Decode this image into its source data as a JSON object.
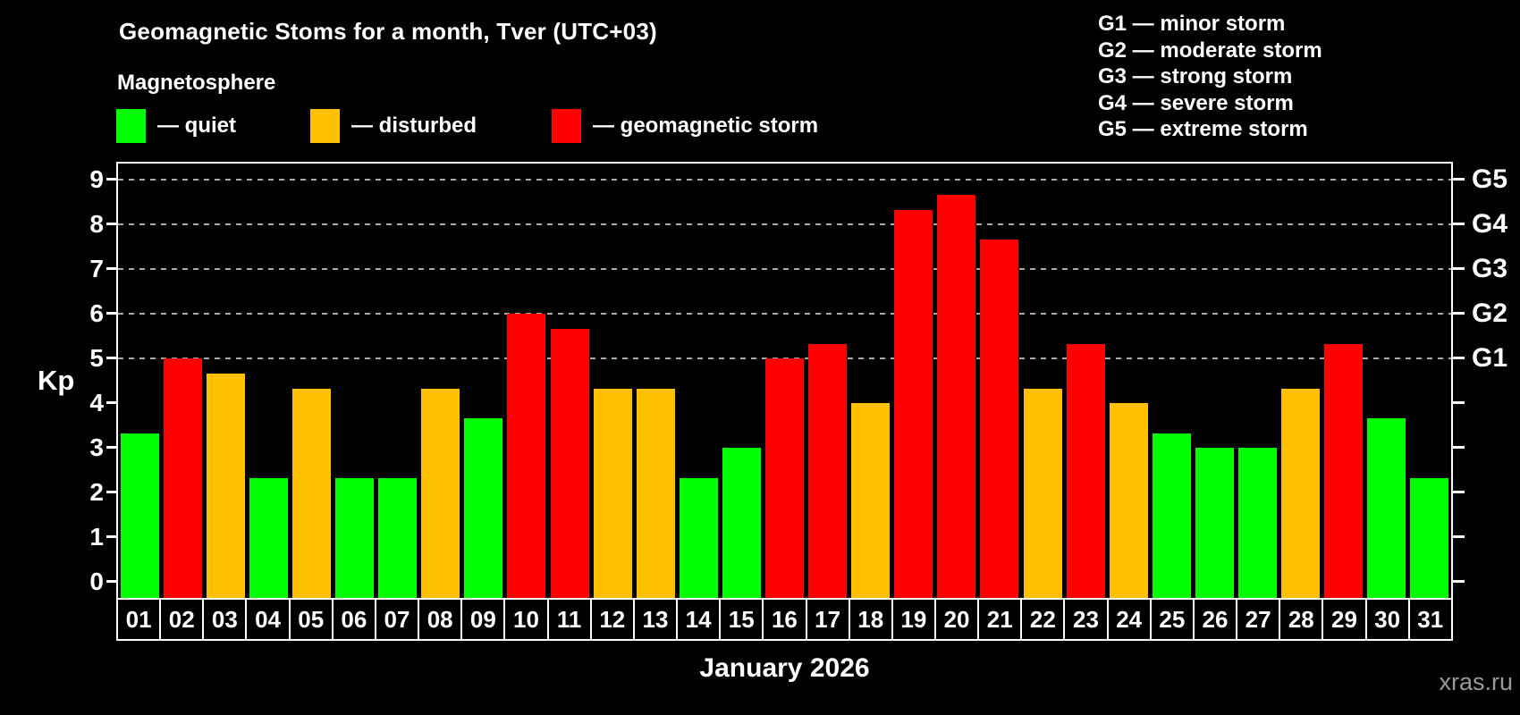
{
  "header": {
    "title": "Geomagnetic Stoms for a month, Tver (UTC+03)",
    "subtitle": "Magnetosphere"
  },
  "legend": {
    "items": [
      {
        "name": "quiet",
        "label": "— quiet",
        "color": "#00FF00"
      },
      {
        "name": "disturbed",
        "label": "— disturbed",
        "color": "#FFC000"
      },
      {
        "name": "storm",
        "label": "— geomagnetic storm",
        "color": "#FF0000"
      }
    ]
  },
  "g_scale_legend": {
    "lines": [
      "G1 — minor storm",
      "G2 — moderate storm",
      "G3 — strong storm",
      "G4 — severe storm",
      "G5 — extreme storm"
    ]
  },
  "chart_data": {
    "type": "bar",
    "title": "Geomagnetic Stoms for a month, Tver (UTC+03)",
    "xlabel": "January 2026",
    "ylabel": "Kp",
    "categories": [
      "01",
      "02",
      "03",
      "04",
      "05",
      "06",
      "07",
      "08",
      "09",
      "10",
      "11",
      "12",
      "13",
      "14",
      "15",
      "16",
      "17",
      "18",
      "19",
      "20",
      "21",
      "22",
      "23",
      "24",
      "25",
      "26",
      "27",
      "28",
      "29",
      "30",
      "31"
    ],
    "values": [
      3.33,
      5.0,
      4.67,
      2.33,
      4.33,
      2.33,
      2.33,
      4.33,
      3.67,
      6.0,
      5.67,
      4.33,
      4.33,
      2.33,
      3.0,
      5.0,
      5.33,
      4.0,
      8.33,
      8.67,
      7.67,
      4.33,
      5.33,
      4.0,
      3.33,
      3.0,
      3.0,
      4.33,
      5.33,
      3.67,
      2.33
    ],
    "statuses": [
      "quiet",
      "storm",
      "disturbed",
      "quiet",
      "disturbed",
      "quiet",
      "quiet",
      "disturbed",
      "quiet",
      "storm",
      "storm",
      "disturbed",
      "disturbed",
      "quiet",
      "quiet",
      "storm",
      "storm",
      "disturbed",
      "storm",
      "storm",
      "storm",
      "disturbed",
      "storm",
      "disturbed",
      "quiet",
      "quiet",
      "quiet",
      "disturbed",
      "storm",
      "quiet",
      "quiet"
    ],
    "status_colors": {
      "quiet": "#00FF00",
      "disturbed": "#FFC000",
      "storm": "#FF0000"
    },
    "y_ticks": [
      0,
      1,
      2,
      3,
      4,
      5,
      6,
      7,
      8,
      9
    ],
    "ylim": [
      -0.36,
      9.36
    ],
    "gridline_kp": [
      5,
      6,
      7,
      8,
      9
    ],
    "right_axis_labels": [
      {
        "label": "G1",
        "kp": 5
      },
      {
        "label": "G2",
        "kp": 6
      },
      {
        "label": "G3",
        "kp": 7
      },
      {
        "label": "G4",
        "kp": 8
      },
      {
        "label": "G5",
        "kp": 9
      }
    ],
    "grid": "horizontal dashed lines at G-storm levels only",
    "legend_position": "top-left"
  },
  "footer": {
    "watermark": "xras.ru"
  }
}
